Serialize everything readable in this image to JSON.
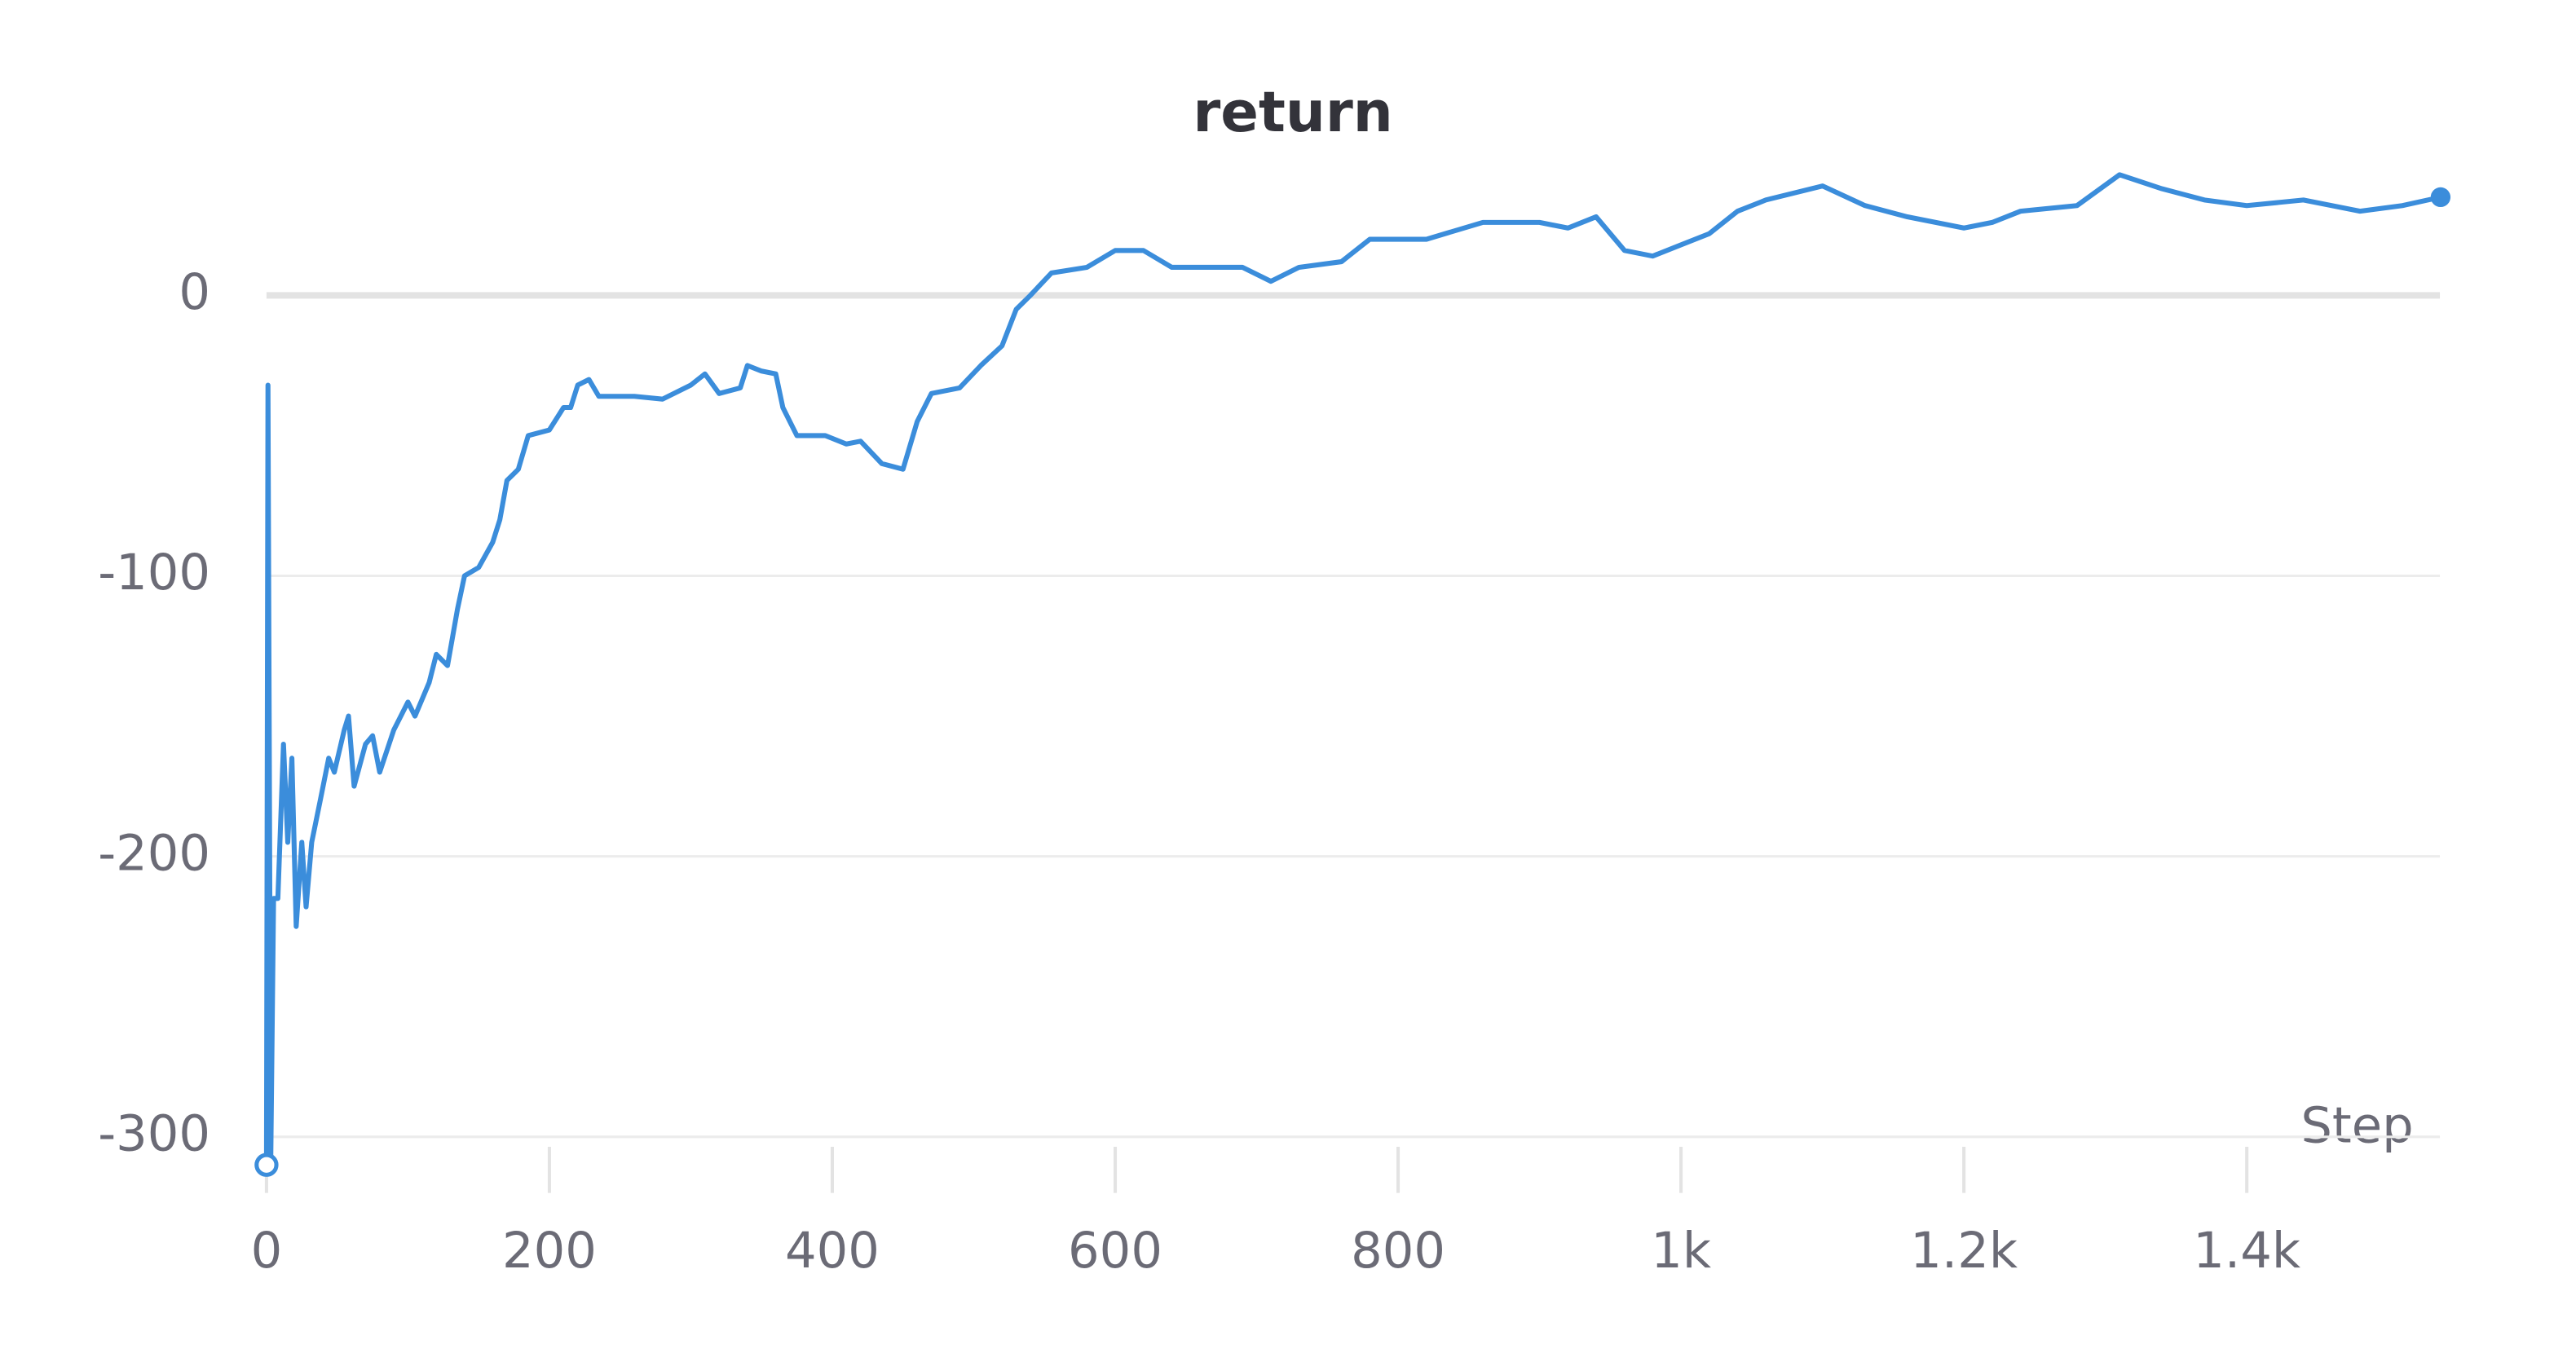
{
  "chart_data": {
    "type": "line",
    "title": "return",
    "x_label": "Step",
    "xlim": [
      0,
      1540
    ],
    "ylim": [
      -315,
      45
    ],
    "xticks": [
      0,
      200,
      400,
      600,
      800,
      {
        "value": 1000,
        "label": "1k"
      },
      {
        "value": 1200,
        "label": "1.2k"
      },
      {
        "value": 1400,
        "label": "1.4k"
      }
    ],
    "yticks": [
      0,
      -100,
      -200,
      -300
    ],
    "grid": true,
    "x": [
      0,
      1,
      3,
      5,
      8,
      12,
      15,
      18,
      21,
      25,
      28,
      32,
      38,
      44,
      48,
      55,
      58,
      62,
      70,
      75,
      80,
      90,
      100,
      105,
      115,
      120,
      128,
      135,
      140,
      150,
      160,
      165,
      170,
      178,
      185,
      200,
      210,
      215,
      220,
      228,
      235,
      260,
      280,
      300,
      310,
      320,
      335,
      340,
      350,
      360,
      365,
      375,
      395,
      410,
      420,
      435,
      450,
      460,
      470,
      490,
      505,
      520,
      530,
      540,
      555,
      580,
      600,
      620,
      640,
      660,
      690,
      710,
      730,
      760,
      780,
      820,
      860,
      900,
      920,
      940,
      960,
      980,
      1000,
      1020,
      1040,
      1060,
      1100,
      1130,
      1160,
      1200,
      1220,
      1240,
      1280,
      1310,
      1340,
      1370,
      1400,
      1440,
      1480,
      1510,
      1537
    ],
    "series": [
      {
        "name": "return",
        "color": "#3b8ddb",
        "values": [
          -310,
          -32,
          -308,
          -215,
          -215,
          -160,
          -195,
          -165,
          -225,
          -195,
          -218,
          -195,
          -180,
          -165,
          -170,
          -155,
          -150,
          -175,
          -160,
          -157,
          -170,
          -155,
          -145,
          -150,
          -138,
          -128,
          -132,
          -112,
          -100,
          -97,
          -88,
          -80,
          -66,
          -62,
          -50,
          -48,
          -40,
          -40,
          -32,
          -30,
          -36,
          -36,
          -37,
          -32,
          -28,
          -35,
          -33,
          -25,
          -27,
          -28,
          -40,
          -50,
          -50,
          -53,
          -52,
          -60,
          -62,
          -45,
          -35,
          -33,
          -25,
          -18,
          -5,
          0,
          8,
          10,
          16,
          16,
          10,
          10,
          10,
          5,
          10,
          12,
          20,
          20,
          26,
          26,
          24,
          28,
          16,
          14,
          18,
          22,
          30,
          34,
          39,
          32,
          28,
          24,
          26,
          30,
          32,
          43,
          38,
          34,
          32,
          34,
          30,
          32,
          35
        ]
      }
    ]
  }
}
